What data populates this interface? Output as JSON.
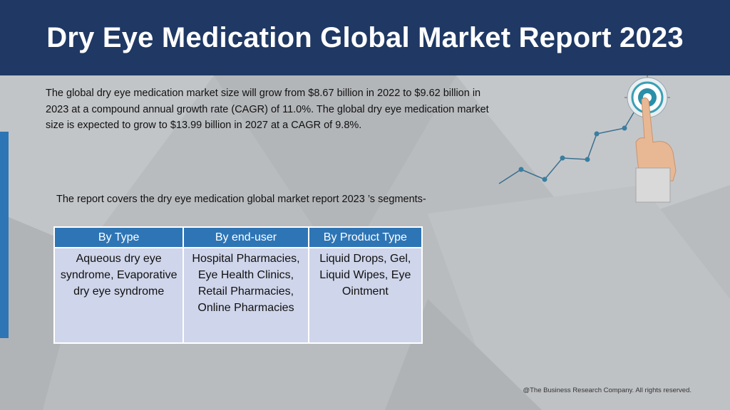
{
  "header": {
    "title": "Dry Eye Medication Global Market Report 2023"
  },
  "intro": {
    "text": "The global dry eye medication market size will grow from $8.67 billion in 2022 to $9.62 billion in 2023 at a compound annual growth rate (CAGR) of 11.0%. The global dry eye medication market size is expected to grow to $13.99 billion in 2027 at a CAGR of 9.8%."
  },
  "segments_intro": "The report covers the dry eye medication global market report 2023 ’s segments-",
  "table": {
    "headers": [
      "By Type",
      "By end-user",
      "By Product Type"
    ],
    "cells": [
      "Aqueous dry eye syndrome, Evaporative dry eye syndrome",
      "Hospital Pharmacies, Eye Health Clinics, Retail Pharmacies, Online Pharmacies",
      "Liquid Drops, Gel, Liquid Wipes, Eye Ointment"
    ]
  },
  "footer": "@The Business Research Company. All rights reserved.",
  "colors": {
    "header_bg": "#1f3864",
    "accent": "#2e75b6",
    "cell_bg": "#cfd5ea",
    "background": "#b9bcbf"
  },
  "graphic": {
    "icons": [
      "growth-line-icon",
      "target-icon",
      "pointing-hand-icon"
    ]
  }
}
